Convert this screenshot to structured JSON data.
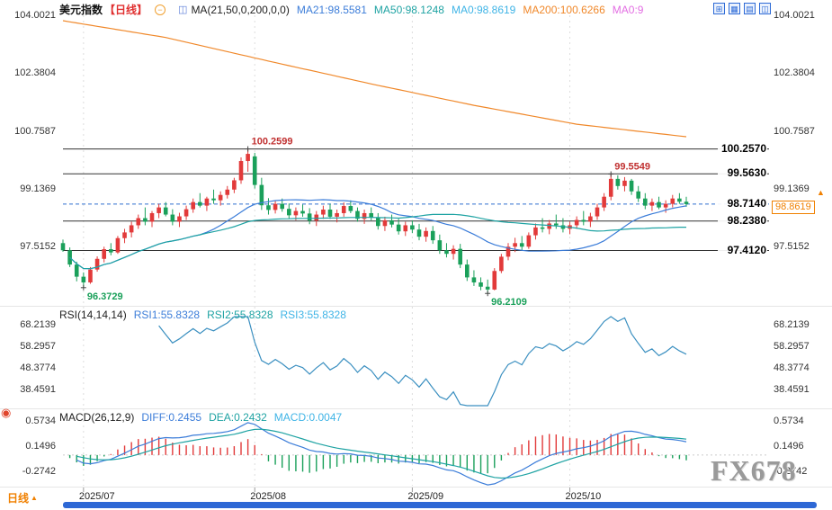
{
  "header": {
    "symbol": "美元指数",
    "period_tag": "【日线】",
    "ma_group_label": "MA(21,50,0,200,0,0)",
    "ma_values": [
      {
        "label": "MA21:98.5581",
        "color": "#3c7dd9"
      },
      {
        "label": "MA50:98.1248",
        "color": "#1fa3a3"
      },
      {
        "label": "MA0:98.8619",
        "color": "#3fb4e6"
      },
      {
        "label": "MA200:100.6266",
        "color": "#f0882a"
      },
      {
        "label": "MA0:9",
        "color": "#e36ee3"
      }
    ],
    "icons": [
      {
        "name": "move-icon",
        "glyph": "⊞"
      },
      {
        "name": "indicators-icon",
        "glyph": "▦"
      },
      {
        "name": "layout-icon",
        "glyph": "▤"
      },
      {
        "name": "new-window-icon",
        "glyph": "◫"
      }
    ]
  },
  "rsi_header": {
    "name": "RSI(14,14,14)",
    "values": [
      {
        "label": "RSI1:55.8328",
        "color": "#3c7dd9"
      },
      {
        "label": "RSI2:55.8328",
        "color": "#1fa3a3"
      },
      {
        "label": "RSI3:55.8328",
        "color": "#3fb4e6"
      }
    ]
  },
  "macd_header": {
    "name": "MACD(26,12,9)",
    "values": [
      {
        "label": "DIFF:0.2455",
        "color": "#3c7dd9"
      },
      {
        "label": "DEA:0.2432",
        "color": "#1fa3a3"
      },
      {
        "label": "MACD:0.0047",
        "color": "#3fb4e6"
      }
    ]
  },
  "footer": {
    "period_label": "日线"
  },
  "watermark": "FX678",
  "colors": {
    "up": "#e23a3a",
    "down": "#1aa05a",
    "ma21": "#3c7dd9",
    "ma50": "#1fa3a3",
    "ma0": "#3fb4e6",
    "ma200": "#f0882a",
    "ma_magenta": "#e36ee3",
    "rsi1": "#3a8fc0",
    "diff": "#3c7dd9",
    "dea": "#1fa3a3",
    "level_line": "#333333",
    "dashed_line": "#2f6fd0",
    "accent_orange": "#f08000",
    "scrollbar": "#2e68d5",
    "period_red": "#e03030",
    "annotation_up": "#c03030",
    "annotation_down": "#1aa05a"
  },
  "chart_data": {
    "type": "candlestick",
    "title": "美元指数",
    "period": "日线",
    "months": [
      {
        "label": "2025/07",
        "index": 3
      },
      {
        "label": "2025/08",
        "index": 28
      },
      {
        "label": "2025/09",
        "index": 51
      },
      {
        "label": "2025/10",
        "index": 74
      }
    ],
    "main": {
      "axis_ticks": [
        104.0021,
        102.3804,
        100.7587,
        99.1369,
        97.5152
      ],
      "levels": [
        100.257,
        99.563,
        98.238,
        97.412
      ],
      "last_price_line": 98.714,
      "axis_price_box": 98.8619,
      "annotations": [
        {
          "index": 27,
          "price": 100.2599,
          "text": "100.2599",
          "color": "#c03030",
          "pos": "above"
        },
        {
          "index": 80,
          "price": 99.5549,
          "text": "99.5549",
          "color": "#c03030",
          "pos": "above"
        },
        {
          "index": 3,
          "price": 96.3729,
          "text": "96.3729",
          "color": "#1aa05a",
          "pos": "below"
        },
        {
          "index": 62,
          "price": 96.2109,
          "text": "96.2109",
          "color": "#1aa05a",
          "pos": "below"
        }
      ],
      "ma_periods": [
        21,
        50
      ],
      "ma200_points": [
        [
          0,
          103.85
        ],
        [
          15,
          103.38
        ],
        [
          30,
          102.72
        ],
        [
          45,
          102.08
        ],
        [
          60,
          101.48
        ],
        [
          75,
          100.95
        ],
        [
          91,
          100.6
        ]
      ],
      "candles": [
        [
          97.62,
          97.72,
          97.38,
          97.42
        ],
        [
          97.42,
          97.5,
          96.95,
          97.02
        ],
        [
          97.02,
          97.1,
          96.55,
          96.68
        ],
        [
          96.68,
          96.8,
          96.3729,
          96.52
        ],
        [
          96.52,
          96.95,
          96.48,
          96.88
        ],
        [
          96.88,
          97.25,
          96.82,
          97.18
        ],
        [
          97.18,
          97.52,
          97.08,
          97.45
        ],
        [
          97.45,
          97.62,
          97.28,
          97.36
        ],
        [
          97.36,
          97.82,
          97.32,
          97.76
        ],
        [
          97.76,
          98.02,
          97.62,
          97.92
        ],
        [
          97.92,
          98.22,
          97.78,
          98.12
        ],
        [
          98.12,
          98.42,
          98.02,
          98.32
        ],
        [
          98.32,
          98.62,
          98.12,
          98.22
        ],
        [
          98.22,
          98.52,
          98.07,
          98.46
        ],
        [
          98.46,
          98.72,
          98.32,
          98.62
        ],
        [
          98.62,
          98.77,
          98.37,
          98.42
        ],
        [
          98.42,
          98.57,
          98.12,
          98.22
        ],
        [
          98.22,
          98.47,
          98.07,
          98.37
        ],
        [
          98.37,
          98.67,
          98.27,
          98.57
        ],
        [
          98.57,
          98.87,
          98.47,
          98.77
        ],
        [
          98.77,
          99.02,
          98.62,
          98.67
        ],
        [
          98.67,
          98.92,
          98.52,
          98.87
        ],
        [
          98.87,
          99.12,
          98.72,
          98.82
        ],
        [
          98.82,
          99.07,
          98.67,
          98.97
        ],
        [
          98.97,
          99.22,
          98.87,
          99.12
        ],
        [
          99.12,
          99.45,
          99.02,
          99.38
        ],
        [
          99.38,
          100.02,
          99.28,
          99.92
        ],
        [
          99.92,
          100.2599,
          99.62,
          100.12
        ],
        [
          100.05,
          100.15,
          99.15,
          99.25
        ],
        [
          99.25,
          99.45,
          98.55,
          98.68
        ],
        [
          98.68,
          98.88,
          98.42,
          98.55
        ],
        [
          98.55,
          98.8,
          98.45,
          98.72
        ],
        [
          98.72,
          98.87,
          98.5,
          98.58
        ],
        [
          98.58,
          98.73,
          98.3,
          98.4
        ],
        [
          98.4,
          98.62,
          98.26,
          98.52
        ],
        [
          98.52,
          98.7,
          98.36,
          98.45
        ],
        [
          98.45,
          98.6,
          98.15,
          98.25
        ],
        [
          98.25,
          98.52,
          98.1,
          98.42
        ],
        [
          98.42,
          98.67,
          98.3,
          98.56
        ],
        [
          98.56,
          98.72,
          98.3,
          98.36
        ],
        [
          98.36,
          98.56,
          98.2,
          98.46
        ],
        [
          98.46,
          98.76,
          98.36,
          98.66
        ],
        [
          98.66,
          98.82,
          98.46,
          98.52
        ],
        [
          98.52,
          98.62,
          98.22,
          98.3
        ],
        [
          98.3,
          98.56,
          98.16,
          98.46
        ],
        [
          98.46,
          98.62,
          98.26,
          98.34
        ],
        [
          98.34,
          98.46,
          98.0,
          98.1
        ],
        [
          98.1,
          98.36,
          97.96,
          98.26
        ],
        [
          98.26,
          98.42,
          98.06,
          98.14
        ],
        [
          98.14,
          98.3,
          97.86,
          97.95
        ],
        [
          97.95,
          98.22,
          97.82,
          98.12
        ],
        [
          98.12,
          98.26,
          97.9,
          98.0
        ],
        [
          98.0,
          98.16,
          97.7,
          97.8
        ],
        [
          97.8,
          98.06,
          97.66,
          97.96
        ],
        [
          97.96,
          98.1,
          97.6,
          97.7
        ],
        [
          97.7,
          97.86,
          97.32,
          97.42
        ],
        [
          97.42,
          97.62,
          97.22,
          97.32
        ],
        [
          97.32,
          97.56,
          97.16,
          97.46
        ],
        [
          97.46,
          97.6,
          96.92,
          97.02
        ],
        [
          97.02,
          97.16,
          96.56,
          96.66
        ],
        [
          96.66,
          96.86,
          96.42,
          96.52
        ],
        [
          96.52,
          96.66,
          96.3,
          96.4
        ],
        [
          96.4,
          96.6,
          96.2109,
          96.32
        ],
        [
          96.32,
          96.92,
          96.3,
          96.84
        ],
        [
          96.84,
          97.32,
          96.78,
          97.24
        ],
        [
          97.24,
          97.62,
          97.14,
          97.52
        ],
        [
          97.52,
          97.77,
          97.37,
          97.62
        ],
        [
          97.62,
          97.82,
          97.42,
          97.52
        ],
        [
          97.52,
          97.92,
          97.46,
          97.84
        ],
        [
          97.84,
          98.17,
          97.72,
          98.06
        ],
        [
          98.06,
          98.32,
          97.92,
          98.02
        ],
        [
          98.02,
          98.27,
          97.87,
          98.17
        ],
        [
          98.17,
          98.42,
          98.02,
          98.12
        ],
        [
          98.12,
          98.32,
          97.92,
          98.02
        ],
        [
          98.02,
          98.22,
          97.87,
          98.12
        ],
        [
          98.12,
          98.37,
          98.02,
          98.27
        ],
        [
          98.27,
          98.52,
          98.12,
          98.22
        ],
        [
          98.22,
          98.47,
          98.07,
          98.37
        ],
        [
          98.37,
          98.72,
          98.27,
          98.62
        ],
        [
          98.62,
          99.02,
          98.52,
          98.92
        ],
        [
          98.92,
          99.5549,
          98.82,
          99.42
        ],
        [
          99.42,
          99.52,
          99.12,
          99.22
        ],
        [
          99.22,
          99.47,
          99.07,
          99.37
        ],
        [
          99.37,
          99.42,
          98.97,
          99.07
        ],
        [
          99.07,
          99.22,
          98.77,
          98.87
        ],
        [
          98.87,
          99.02,
          98.57,
          98.67
        ],
        [
          98.67,
          98.87,
          98.52,
          98.77
        ],
        [
          98.77,
          98.92,
          98.57,
          98.62
        ],
        [
          98.62,
          98.82,
          98.47,
          98.72
        ],
        [
          98.72,
          98.97,
          98.62,
          98.87
        ],
        [
          98.87,
          99.02,
          98.72,
          98.78
        ],
        [
          98.78,
          98.92,
          98.64,
          98.714
        ]
      ]
    },
    "rsi": {
      "period": 14,
      "axis_ticks": [
        68.2139,
        58.2957,
        48.3774,
        38.4591
      ]
    },
    "macd": {
      "fast": 12,
      "slow": 26,
      "signal": 9,
      "axis_ticks": [
        0.5734,
        0.1496,
        -0.2742
      ]
    }
  }
}
